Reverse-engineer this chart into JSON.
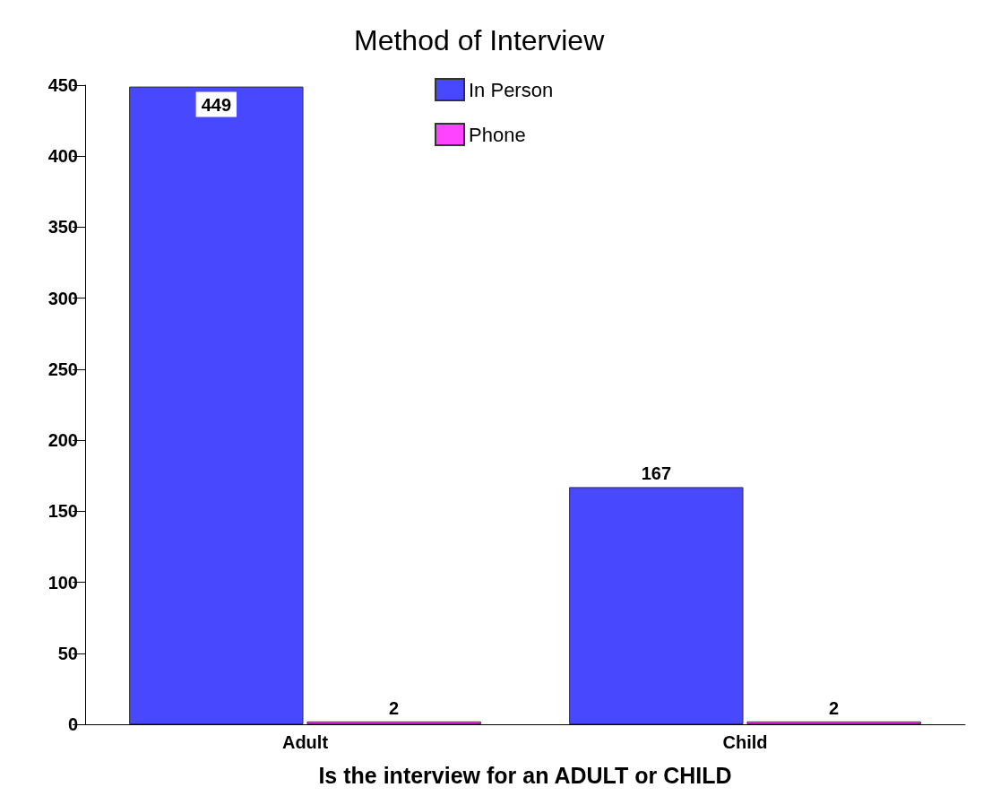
{
  "chart_data": {
    "type": "bar",
    "title": "Method of Interview",
    "xlabel": "Is the interview for an ADULT or CHILD",
    "categories": [
      "Adult",
      "Child"
    ],
    "series": [
      {
        "name": "In Person",
        "color": "#4848ff",
        "values": [
          449,
          167
        ]
      },
      {
        "name": "Phone",
        "color": "#ff44ff",
        "values": [
          2,
          2
        ]
      }
    ],
    "ylim": [
      0,
      450
    ],
    "yticks": [
      0,
      50,
      100,
      150,
      200,
      250,
      300,
      350,
      400,
      450
    ],
    "data_labels": true,
    "legend": "top",
    "grid": false
  }
}
